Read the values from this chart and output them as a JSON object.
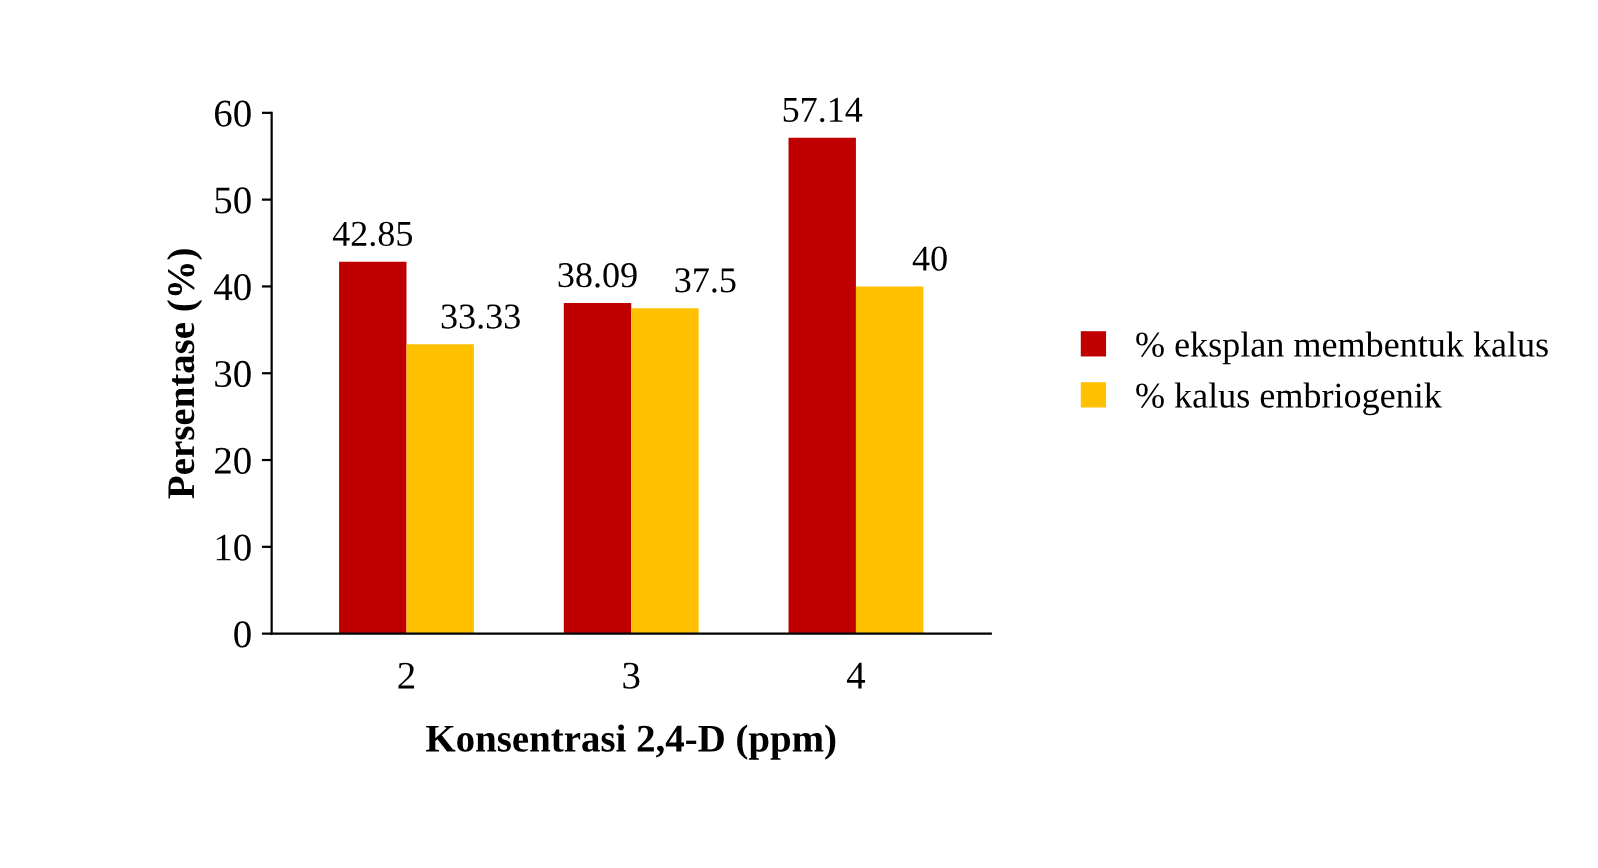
{
  "chart_data": {
    "type": "bar",
    "xlabel": "Konsentrasi 2,4-D (ppm)",
    "ylabel": "Persentase (%)",
    "categories": [
      "2",
      "3",
      "4"
    ],
    "series": [
      {
        "name": "% eksplan membentuk kalus",
        "color": "#c00000",
        "values": [
          42.85,
          38.09,
          57.14
        ]
      },
      {
        "name": "% kalus embriogenik",
        "color": "#ffc000",
        "values": [
          33.33,
          37.5,
          40
        ]
      }
    ],
    "ylim": [
      0,
      60
    ],
    "yticks": [
      0,
      10,
      20,
      30,
      40,
      50,
      60
    ],
    "data_labels": true,
    "legend": "right",
    "grid": false
  }
}
